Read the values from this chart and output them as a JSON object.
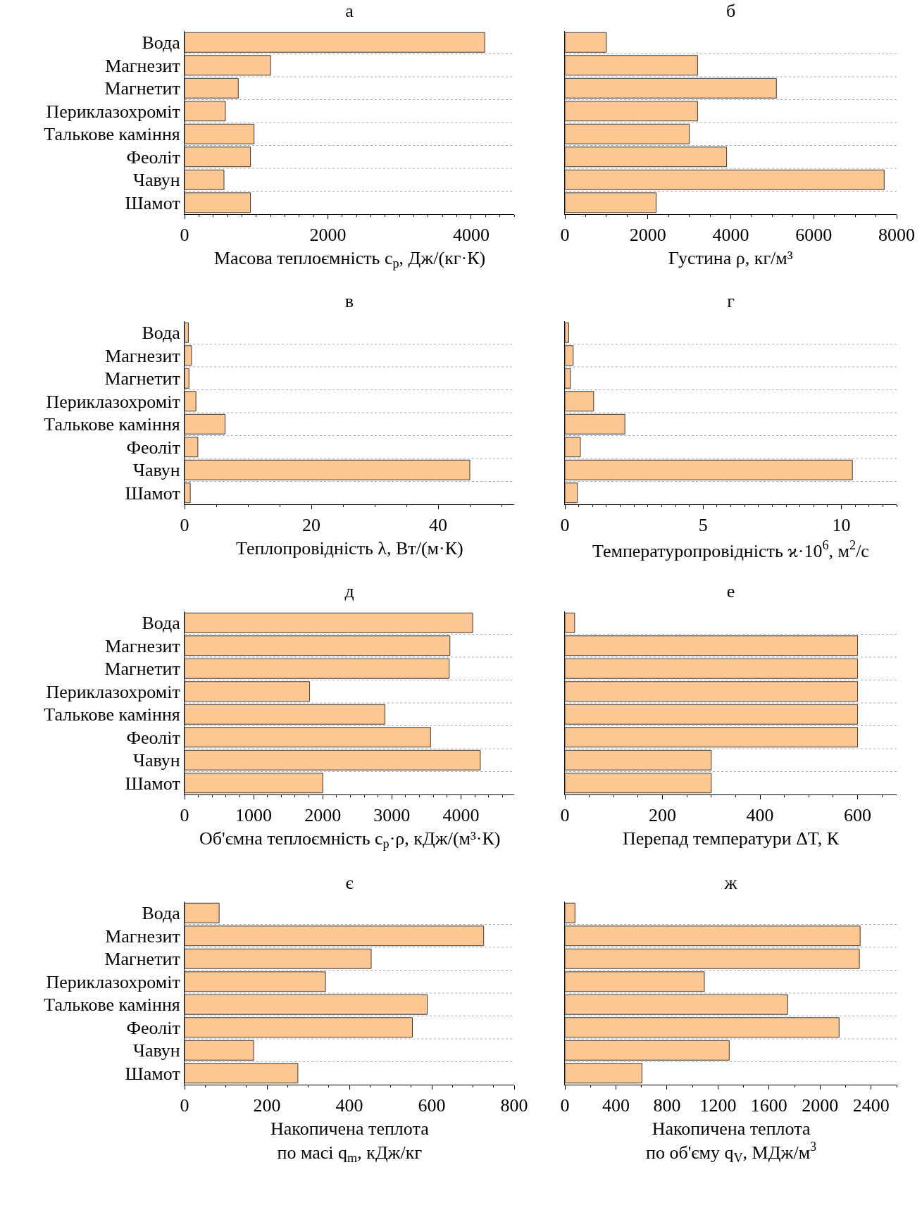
{
  "chart_data": [
    {
      "type": "bar",
      "orientation": "horizontal",
      "title": "а",
      "categories": [
        "Вода",
        "Магнезит",
        "Магнетит",
        "Периклазохроміт",
        "Талькове каміння",
        "Феоліт",
        "Чавун",
        "Шамот"
      ],
      "values": [
        4190,
        1200,
        750,
        570,
        970,
        920,
        550,
        920
      ],
      "color": "#fdc793",
      "xlabel": "Масова теплоємність c$_{p}$, Дж/(кг·К)",
      "xlim": [
        0,
        4600
      ],
      "xticks": [
        0,
        2000,
        4000
      ],
      "grid": "y"
    },
    {
      "type": "bar",
      "orientation": "horizontal",
      "title": "б",
      "categories": [
        null,
        null,
        null,
        null,
        null,
        null,
        null,
        null
      ],
      "values": [
        1000,
        3200,
        5100,
        3200,
        3000,
        3900,
        7700,
        2200
      ],
      "color": "#fdc793",
      "xlabel": "Густина ρ, кг/м³",
      "xlim": [
        0,
        8000
      ],
      "xticks": [
        0,
        2000,
        4000,
        6000,
        8000
      ],
      "grid": "y",
      "tick_labels": "x"
    },
    {
      "type": "bar",
      "orientation": "horizontal",
      "title": "в",
      "categories": [
        "Вода",
        "Магнезит",
        "Магнетит",
        "Периклазохроміт",
        "Талькове каміння",
        "Феоліт",
        "Чавун",
        "Шамот"
      ],
      "values": [
        0.6,
        1.1,
        0.7,
        1.8,
        6.4,
        2.1,
        45,
        0.9
      ],
      "color": "#fdc793",
      "xlabel": "Теплопровідність λ, Вт/(м·К)",
      "xlim": [
        0,
        52
      ],
      "xticks": [
        0,
        20,
        40
      ],
      "grid": "y"
    },
    {
      "type": "bar",
      "orientation": "horizontal",
      "title": "г",
      "categories": [
        null,
        null,
        null,
        null,
        null,
        null,
        null,
        null
      ],
      "values": [
        0.14,
        0.3,
        0.2,
        1.04,
        2.17,
        0.56,
        10.4,
        0.45
      ],
      "color": "#fdc793",
      "xlabel": "Температуропровідність ϰ·10$^{6}$, м$^{2}$/с",
      "xlim": [
        0,
        12
      ],
      "xticks": [
        0,
        5,
        10
      ],
      "grid": "y",
      "tick_labels": "x"
    },
    {
      "type": "bar",
      "orientation": "horizontal",
      "title": "д",
      "categories": [
        "Вода",
        "Магнезит",
        "Магнетит",
        "Периклазохроміт",
        "Талькове каміння",
        "Феоліт",
        "Чавун",
        "Шамот"
      ],
      "values": [
        4170,
        3840,
        3830,
        1810,
        2900,
        3560,
        4280,
        2000
      ],
      "color": "#fdc793",
      "xlabel": "Об'ємна теплоємність c$_{p}$·ρ, кДж/(м³·К)",
      "xlim": [
        0,
        4770
      ],
      "xticks": [
        0,
        1000,
        2000,
        3000,
        4000
      ],
      "grid": "y"
    },
    {
      "type": "bar",
      "orientation": "horizontal",
      "title": "е",
      "categories": [
        null,
        null,
        null,
        null,
        null,
        null,
        null,
        null
      ],
      "values": [
        20,
        600,
        600,
        600,
        600,
        600,
        300,
        300
      ],
      "color": "#fdc793",
      "xlabel": "Перепад температури ΔT, К",
      "xlim": [
        0,
        680
      ],
      "xticks": [
        0,
        200,
        400,
        600
      ],
      "grid": "y",
      "tick_labels": "x"
    },
    {
      "type": "bar",
      "orientation": "horizontal",
      "title": "є",
      "categories": [
        "Вода",
        "Магнезит",
        "Магнетит",
        "Периклазохроміт",
        "Талькове каміння",
        "Феоліт",
        "Чавун",
        "Шамот"
      ],
      "values": [
        84,
        726,
        453,
        342,
        589,
        553,
        168,
        275
      ],
      "color": "#fdc793",
      "xlabel": "Накопичена теплота\nпо масі q$_{m}$, кДж/кг",
      "xlim": [
        0,
        800
      ],
      "xticks": [
        0,
        200,
        400,
        600,
        800
      ],
      "grid": "y"
    },
    {
      "type": "bar",
      "orientation": "horizontal",
      "title": "ж",
      "categories": [
        null,
        null,
        null,
        null,
        null,
        null,
        null,
        null
      ],
      "values": [
        79,
        2314,
        2308,
        1093,
        1746,
        2149,
        1288,
        604
      ],
      "color": "#fdc793",
      "xlabel": "Накопичена теплота\nпо об'єму q$_{V}$, МДж/м$^{3}$",
      "xlim": [
        0,
        2600
      ],
      "xticks": [
        0,
        400,
        800,
        1200,
        1600,
        2000,
        2400
      ],
      "grid": "y",
      "tick_labels": "x"
    }
  ]
}
